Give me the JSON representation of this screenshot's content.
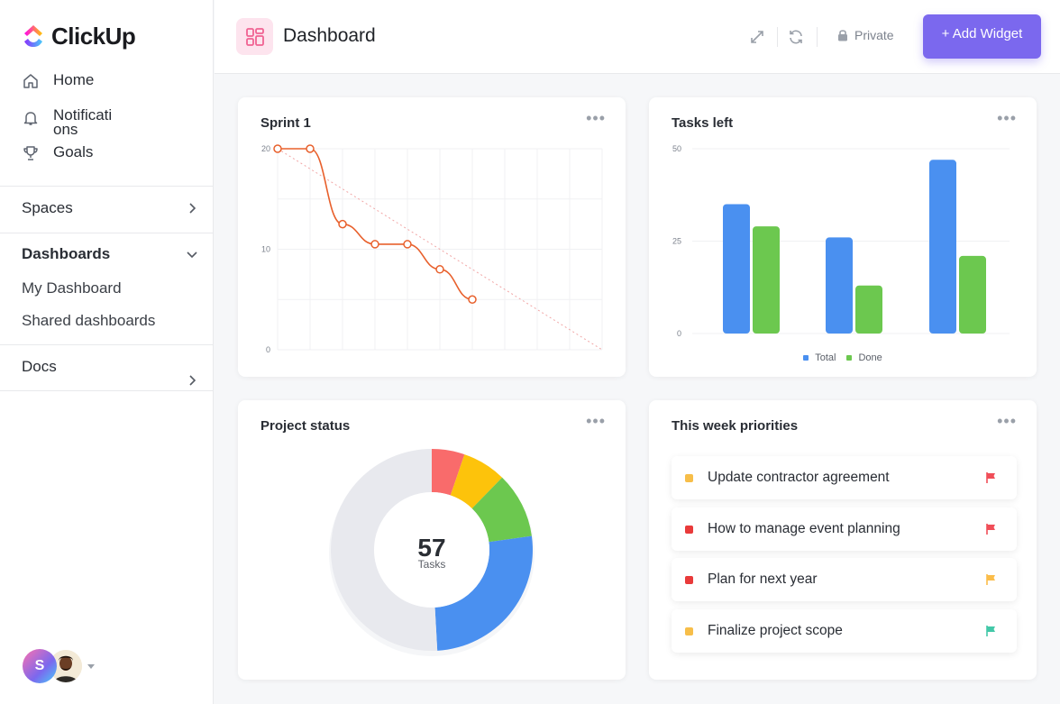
{
  "app": {
    "logo_text": "ClickUp"
  },
  "sidebar": {
    "nav": [
      {
        "label": "Home",
        "icon": "home-icon"
      },
      {
        "label": "Notificati\nons",
        "icon": "bell-icon"
      },
      {
        "label": "Goals",
        "icon": "trophy-icon"
      }
    ],
    "spaces_label": "Spaces",
    "dashboards_label": "Dashboards",
    "dashboards_items": [
      "My Dashboard",
      "Shared dashboards"
    ],
    "docs_label": "Docs",
    "user_initial": "S"
  },
  "header": {
    "title": "Dashboard",
    "privacy_label": "Private",
    "add_widget_label": "+ Add Widget"
  },
  "widgets": {
    "sprint": {
      "title": "Sprint 1",
      "more": "•••"
    },
    "tasks_left": {
      "title": "Tasks left",
      "more": "•••"
    },
    "project_status": {
      "title": "Project status",
      "more": "•••",
      "center_value": "57",
      "center_label": "Tasks"
    },
    "priorities": {
      "title": "This week priorities",
      "more": "•••",
      "items": [
        {
          "text": "Update contractor agreement",
          "status_color": "#f7be49",
          "flag_color": "#f04e58"
        },
        {
          "text": "How to manage event planning",
          "status_color": "#e93a3a",
          "flag_color": "#f04e58"
        },
        {
          "text": "Plan for next year",
          "status_color": "#e93a3a",
          "flag_color": "#fbbd4a"
        },
        {
          "text": "Finalize project scope",
          "status_color": "#f7be49",
          "flag_color": "#43c8a8"
        }
      ]
    }
  },
  "colors": {
    "accent": "#7b68ee",
    "line": "#e8602c",
    "total": "#4a90f0",
    "done": "#6cc84f"
  },
  "chart_data": [
    {
      "type": "line",
      "title": "Sprint 1",
      "x": [
        1,
        2,
        3,
        4,
        5,
        6,
        7
      ],
      "series": [
        {
          "values": [
            20,
            20,
            12.5,
            10.5,
            10.5,
            8,
            5
          ]
        }
      ],
      "ideal_line": [
        [
          1,
          20
        ],
        [
          11,
          0
        ]
      ],
      "yticks": [
        "20",
        "10",
        "0"
      ],
      "ylim": [
        0,
        20
      ],
      "xlim": [
        1,
        11
      ]
    },
    {
      "type": "bar",
      "title": "Tasks left",
      "categories": [
        "",
        "",
        ""
      ],
      "series": [
        {
          "name": "Total",
          "values": [
            35,
            26,
            47
          ]
        },
        {
          "name": "Done",
          "values": [
            29,
            13,
            21
          ]
        }
      ],
      "yticks": [
        "50",
        "25",
        "0"
      ],
      "ylim": [
        0,
        50
      ],
      "legend": "bottom"
    },
    {
      "type": "pie",
      "title": "Project status",
      "slices": [
        {
          "value": 3,
          "color": "#f96b6b"
        },
        {
          "value": 4,
          "color": "#fdc30b"
        },
        {
          "value": 6,
          "color": "#6cc84f"
        },
        {
          "value": 15,
          "color": "#4a90f0"
        },
        {
          "value": 29,
          "color": "#e8e9ee"
        }
      ],
      "total": 57
    }
  ]
}
